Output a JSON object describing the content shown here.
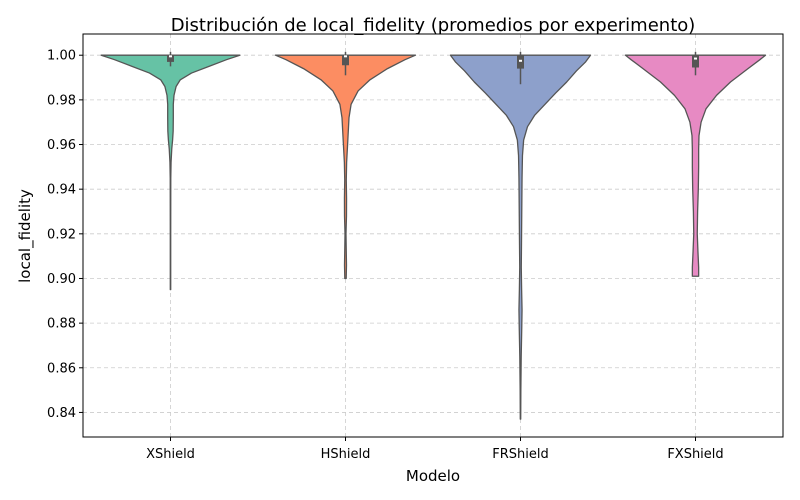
{
  "chart_data": {
    "type": "violin",
    "title": "Distribución de local_fidelity (promedios por experimento)",
    "xlabel": "Modelo",
    "ylabel": "local_fidelity",
    "ylim": [
      0.829,
      1.0095
    ],
    "yticks": [
      "0.84",
      "0.86",
      "0.88",
      "0.90",
      "0.92",
      "0.94",
      "0.96",
      "0.98",
      "1.00"
    ],
    "grid": true,
    "categories": [
      "XShield",
      "HShield",
      "FRShield",
      "FXShield"
    ],
    "violins": [
      {
        "name": "XShield",
        "color": "#66c2a5",
        "min": 0.895,
        "max": 1.0,
        "q1": 0.997,
        "median": 0.9995,
        "q3": 1.0,
        "whisker_low": 0.995,
        "whisker_high": 1.0015,
        "profile": [
          [
            0.895,
            0.003
          ],
          [
            0.92,
            0.003
          ],
          [
            0.945,
            0.004
          ],
          [
            0.952,
            0.008
          ],
          [
            0.958,
            0.018
          ],
          [
            0.962,
            0.03
          ],
          [
            0.966,
            0.038
          ],
          [
            0.972,
            0.04
          ],
          [
            0.978,
            0.04
          ],
          [
            0.982,
            0.05
          ],
          [
            0.986,
            0.08
          ],
          [
            0.989,
            0.14
          ],
          [
            0.992,
            0.3
          ],
          [
            0.995,
            0.55
          ],
          [
            0.998,
            0.8
          ],
          [
            1.0,
            0.99
          ]
        ]
      },
      {
        "name": "HShield",
        "color": "#fc8d62",
        "min": 0.9,
        "max": 1.0,
        "q1": 0.9955,
        "median": 0.9995,
        "q3": 1.0,
        "whisker_low": 0.991,
        "whisker_high": 1.0015,
        "profile": [
          [
            0.9,
            0.01
          ],
          [
            0.906,
            0.014
          ],
          [
            0.912,
            0.011
          ],
          [
            0.92,
            0.007
          ],
          [
            0.928,
            0.014
          ],
          [
            0.936,
            0.015
          ],
          [
            0.944,
            0.011
          ],
          [
            0.952,
            0.016
          ],
          [
            0.96,
            0.03
          ],
          [
            0.966,
            0.04
          ],
          [
            0.972,
            0.05
          ],
          [
            0.978,
            0.08
          ],
          [
            0.984,
            0.18
          ],
          [
            0.989,
            0.35
          ],
          [
            0.994,
            0.6
          ],
          [
            0.998,
            0.85
          ],
          [
            1.0,
            1.0
          ]
        ]
      },
      {
        "name": "FRShield",
        "color": "#8da0cb",
        "min": 0.837,
        "max": 1.0,
        "q1": 0.994,
        "median": 0.9975,
        "q3": 1.0,
        "whisker_low": 0.987,
        "whisker_high": 1.0015,
        "profile": [
          [
            0.837,
            0.003
          ],
          [
            0.85,
            0.005
          ],
          [
            0.865,
            0.01
          ],
          [
            0.878,
            0.018
          ],
          [
            0.886,
            0.022
          ],
          [
            0.895,
            0.016
          ],
          [
            0.905,
            0.011
          ],
          [
            0.915,
            0.014
          ],
          [
            0.93,
            0.018
          ],
          [
            0.945,
            0.022
          ],
          [
            0.955,
            0.028
          ],
          [
            0.962,
            0.045
          ],
          [
            0.968,
            0.1
          ],
          [
            0.973,
            0.2
          ],
          [
            0.978,
            0.35
          ],
          [
            0.983,
            0.5
          ],
          [
            0.988,
            0.66
          ],
          [
            0.993,
            0.8
          ],
          [
            0.997,
            0.93
          ],
          [
            1.0,
            1.0
          ]
        ]
      },
      {
        "name": "FXShield",
        "color": "#e78ac3",
        "min": 0.901,
        "max": 1.0,
        "q1": 0.9945,
        "median": 0.9985,
        "q3": 1.0,
        "whisker_low": 0.991,
        "whisker_high": 1.0015,
        "profile": [
          [
            0.901,
            0.045
          ],
          [
            0.905,
            0.045
          ],
          [
            0.912,
            0.035
          ],
          [
            0.92,
            0.025
          ],
          [
            0.93,
            0.03
          ],
          [
            0.94,
            0.04
          ],
          [
            0.95,
            0.045
          ],
          [
            0.958,
            0.045
          ],
          [
            0.964,
            0.05
          ],
          [
            0.97,
            0.08
          ],
          [
            0.976,
            0.15
          ],
          [
            0.982,
            0.3
          ],
          [
            0.988,
            0.5
          ],
          [
            0.994,
            0.75
          ],
          [
            0.998,
            0.92
          ],
          [
            1.0,
            1.0
          ]
        ]
      }
    ]
  }
}
